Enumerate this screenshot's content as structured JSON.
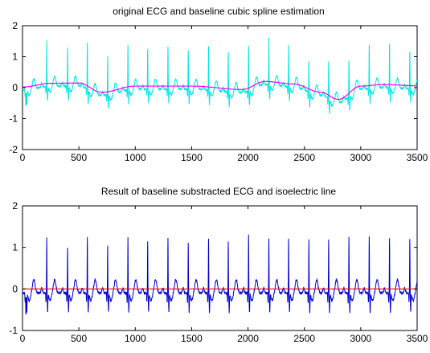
{
  "chart_data": [
    {
      "type": "line",
      "title": "original ECG and baseline cubic spline estimation",
      "xlabel": "",
      "ylabel": "",
      "xlim": [
        0,
        3500
      ],
      "ylim": [
        -2,
        2
      ],
      "x_ticks": [
        0,
        500,
        1000,
        1500,
        2000,
        2500,
        3000,
        3500
      ],
      "y_ticks": [
        -2,
        -1,
        0,
        1,
        2
      ],
      "grid": false,
      "legend": "none",
      "series": [
        {
          "color": "#00e5e5",
          "beats_x": [
            30,
            215,
            400,
            575,
            755,
            935,
            1110,
            1290,
            1470,
            1650,
            1825,
            2005,
            2185,
            2360,
            2540,
            2715,
            2895,
            3075,
            3255,
            3435
          ],
          "r_peak_y": [
            -0.65,
            1.4,
            1.15,
            1.4,
            1.15,
            1.35,
            1.2,
            1.3,
            1.15,
            1.3,
            1.2,
            1.35,
            1.4,
            1.25,
            0.9,
            1.1,
            1.05,
            1.3,
            1.3,
            1.1
          ]
        },
        {
          "color": "#ff00ff",
          "x": [
            0,
            250,
            500,
            700,
            1000,
            1500,
            1950,
            2150,
            2400,
            2650,
            2800,
            3000,
            3200,
            3500
          ],
          "y": [
            0.02,
            0.14,
            0.15,
            -0.15,
            0.05,
            0.05,
            -0.06,
            0.2,
            0.12,
            -0.15,
            -0.38,
            0.05,
            0.1,
            0.06
          ]
        }
      ]
    },
    {
      "type": "line",
      "title": "Result of baseline substracted ECG and isoelectric line",
      "xlabel": "",
      "ylabel": "",
      "xlim": [
        0,
        3500
      ],
      "ylim": [
        -1,
        2
      ],
      "x_ticks": [
        0,
        500,
        1000,
        1500,
        2000,
        2500,
        3000,
        3500
      ],
      "y_ticks": [
        -1,
        0,
        1,
        2
      ],
      "grid": false,
      "legend": "none",
      "series": [
        {
          "color": "#0000cc",
          "beats_x": [
            30,
            215,
            400,
            575,
            755,
            935,
            1110,
            1290,
            1470,
            1650,
            1825,
            2005,
            2185,
            2360,
            2540,
            2715,
            2895,
            3075,
            3255,
            3435
          ],
          "r_peak_y": [
            -0.65,
            1.25,
            1.0,
            1.25,
            1.05,
            1.25,
            1.15,
            1.25,
            1.1,
            1.2,
            1.15,
            1.3,
            1.2,
            1.2,
            1.2,
            1.2,
            1.25,
            1.25,
            1.2,
            1.2
          ]
        },
        {
          "color": "#ff0000",
          "x": [
            0,
            3500
          ],
          "y": [
            0,
            0
          ]
        }
      ]
    }
  ]
}
